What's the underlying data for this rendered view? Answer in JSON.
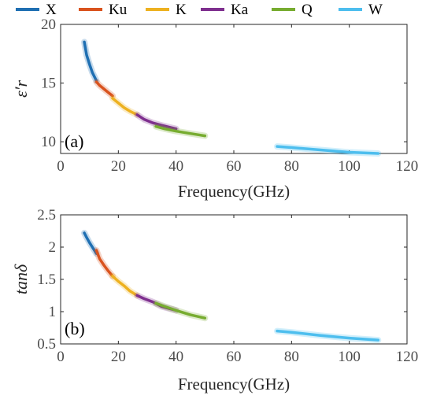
{
  "chart_data": [
    {
      "type": "line",
      "panel_label": "(a)",
      "xlabel": "Frequency(GHz)",
      "ylabel": "ε′r",
      "xlim": [
        0,
        120
      ],
      "ylim": [
        9,
        20
      ],
      "xticks": [
        0,
        20,
        40,
        60,
        80,
        100,
        120
      ],
      "yticks": [
        10,
        15,
        20
      ],
      "grid": false,
      "legend_position": "top",
      "series": [
        {
          "name": "X",
          "color": "#1f6fb2",
          "x": [
            8.2,
            9,
            10,
            11,
            12.4
          ],
          "y": [
            18.5,
            17.4,
            16.6,
            15.9,
            15.2
          ]
        },
        {
          "name": "Ku",
          "color": "#d9531e",
          "x": [
            12.4,
            13.5,
            15,
            16.5,
            18
          ],
          "y": [
            15.1,
            14.8,
            14.5,
            14.2,
            13.9
          ]
        },
        {
          "name": "K",
          "color": "#edb120",
          "x": [
            18,
            20,
            22,
            24,
            26.5
          ],
          "y": [
            13.7,
            13.3,
            12.9,
            12.6,
            12.3
          ]
        },
        {
          "name": "Ka",
          "color": "#7e2f8e",
          "x": [
            26.5,
            29,
            32,
            35,
            40
          ],
          "y": [
            12.3,
            11.9,
            11.6,
            11.4,
            11.1
          ]
        },
        {
          "name": "Q",
          "color": "#77ac30",
          "x": [
            33,
            36,
            40,
            45,
            50
          ],
          "y": [
            11.3,
            11.1,
            10.9,
            10.7,
            10.5
          ]
        },
        {
          "name": "W",
          "color": "#4dbeee",
          "x": [
            75,
            80,
            90,
            100,
            110
          ],
          "y": [
            9.6,
            9.5,
            9.3,
            9.1,
            9.0
          ]
        }
      ]
    },
    {
      "type": "line",
      "panel_label": "(b)",
      "xlabel": "Frequency(GHz)",
      "ylabel": "tanδ",
      "xlim": [
        0,
        120
      ],
      "ylim": [
        0.5,
        2.5
      ],
      "xticks": [
        0,
        20,
        40,
        60,
        80,
        100,
        120
      ],
      "yticks": [
        0.5,
        1,
        1.5,
        2,
        2.5
      ],
      "grid": false,
      "series": [
        {
          "name": "X",
          "color": "#1f6fb2",
          "x": [
            8.2,
            9,
            10,
            11,
            12.4
          ],
          "y": [
            2.22,
            2.15,
            2.07,
            2.0,
            1.9
          ]
        },
        {
          "name": "Ku",
          "color": "#d9531e",
          "x": [
            12.4,
            13.5,
            15,
            16.5,
            18
          ],
          "y": [
            1.95,
            1.82,
            1.72,
            1.63,
            1.55
          ]
        },
        {
          "name": "K",
          "color": "#edb120",
          "x": [
            18,
            20,
            22,
            24,
            26.5
          ],
          "y": [
            1.55,
            1.47,
            1.4,
            1.32,
            1.25
          ]
        },
        {
          "name": "Ka",
          "color": "#7e2f8e",
          "x": [
            26.5,
            29,
            32,
            35,
            40
          ],
          "y": [
            1.25,
            1.2,
            1.15,
            1.08,
            1.02
          ]
        },
        {
          "name": "Q",
          "color": "#77ac30",
          "x": [
            33,
            36,
            40,
            45,
            50
          ],
          "y": [
            1.13,
            1.08,
            1.02,
            0.95,
            0.9
          ]
        },
        {
          "name": "W",
          "color": "#4dbeee",
          "x": [
            75,
            80,
            90,
            100,
            110
          ],
          "y": [
            0.7,
            0.68,
            0.63,
            0.59,
            0.56
          ]
        }
      ]
    }
  ]
}
